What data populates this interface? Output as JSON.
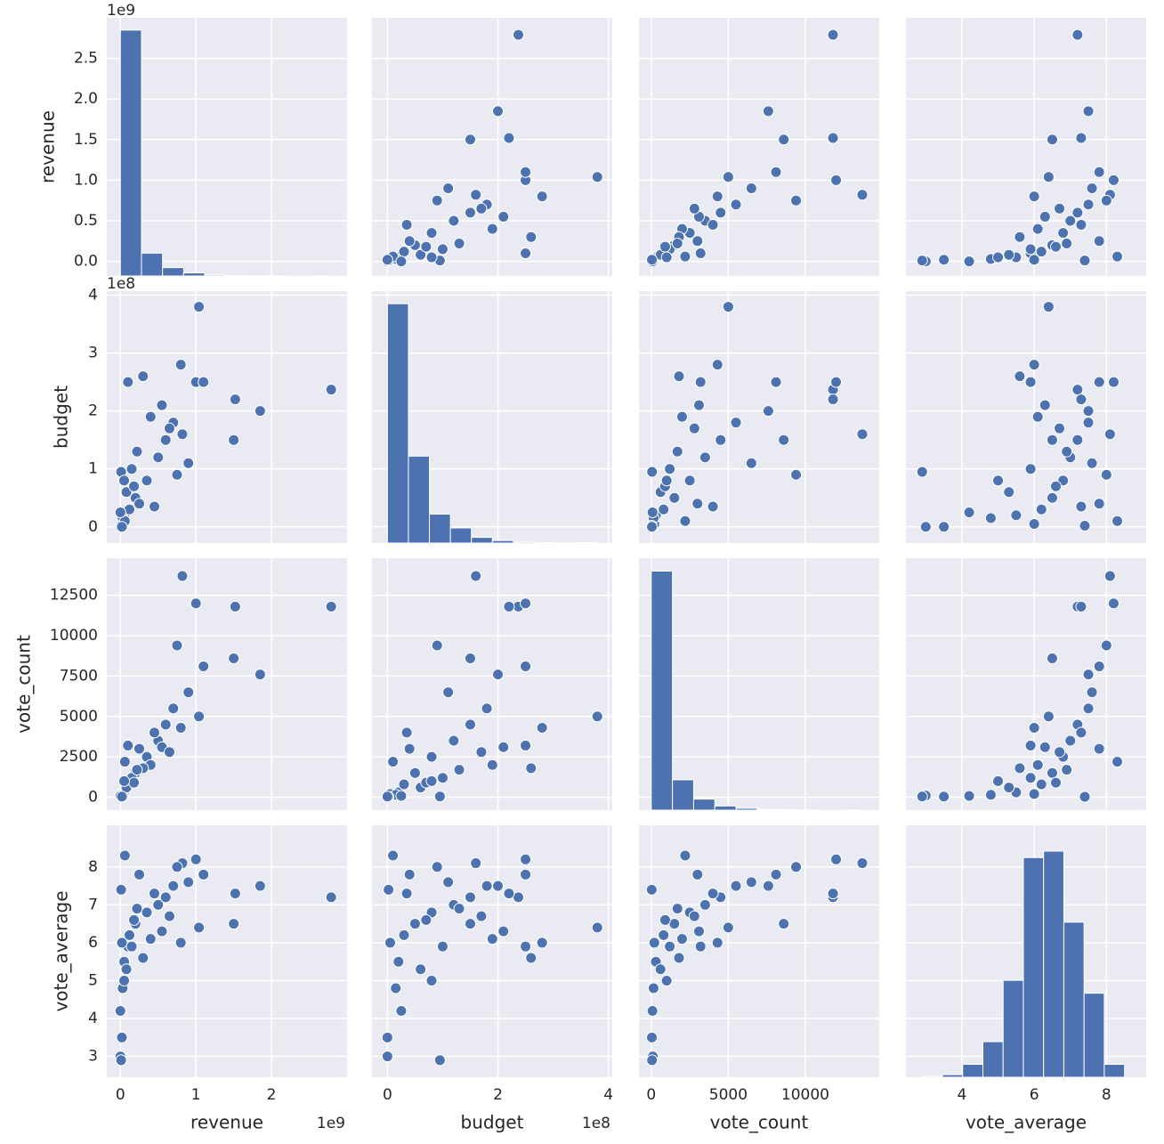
{
  "chart_data": {
    "type": "pairplot",
    "color": "#4c72b0",
    "grid": true,
    "variables": [
      {
        "label": "revenue",
        "offset": "1e9",
        "lim": [
          -0.18,
          3.0
        ],
        "xticks": [
          0,
          1,
          2
        ],
        "yticks": [
          {
            "value": 0,
            "label": "0.0"
          },
          {
            "value": 0.5,
            "label": "0.5"
          },
          {
            "value": 1,
            "label": "1.0"
          },
          {
            "value": 1.5,
            "label": "1.5"
          },
          {
            "value": 2,
            "label": "2.0"
          },
          {
            "value": 2.5,
            "label": "2.5"
          }
        ],
        "values": [
          2.79,
          1.85,
          1.52,
          1.04,
          1.5,
          0.82,
          1.0,
          0.1,
          0.0,
          0.01,
          0.05,
          0.12,
          0.2,
          0.35,
          0.5,
          0.6,
          0.7,
          0.25,
          0.02,
          0.03,
          0.08,
          0.15,
          0.4,
          0.9,
          0.01,
          0.06,
          0.3,
          0.45,
          0.0,
          0.18,
          0.55,
          0.05,
          0.8,
          1.1,
          0.75,
          0.22,
          0.02,
          0.65
        ]
      },
      {
        "label": "budget",
        "offset": "1e8",
        "lim": [
          -0.28,
          4.07
        ],
        "xticks": [
          0,
          2,
          4
        ],
        "yticks": [
          0,
          1,
          2,
          3,
          4
        ],
        "values": [
          2.37,
          2.0,
          2.2,
          3.8,
          1.5,
          1.6,
          2.5,
          2.5,
          0.0,
          0.95,
          0.2,
          0.3,
          0.5,
          0.8,
          1.2,
          1.5,
          1.8,
          0.4,
          0.05,
          0.15,
          0.6,
          1.0,
          1.9,
          1.1,
          0.02,
          0.1,
          2.6,
          0.35,
          0.25,
          0.7,
          2.1,
          0.8,
          2.8,
          2.5,
          0.9,
          1.3,
          0.0,
          1.7
        ]
      },
      {
        "label": "vote_count",
        "lim": [
          -800,
          14800
        ],
        "xticks": [
          0,
          5000,
          10000
        ],
        "yticks": [
          0,
          2500,
          5000,
          7500,
          10000,
          12500
        ],
        "values": [
          11800,
          7600,
          11800,
          5000,
          8600,
          13700,
          12000,
          3200,
          100,
          50,
          300,
          800,
          1500,
          2500,
          3500,
          4500,
          5500,
          3000,
          200,
          150,
          600,
          1200,
          2000,
          6500,
          30,
          2200,
          1800,
          4000,
          80,
          900,
          3100,
          1000,
          4300,
          8100,
          9400,
          1700,
          40,
          2800
        ]
      },
      {
        "label": "vote_average",
        "lim": [
          2.45,
          9.1
        ],
        "xticks": [
          4,
          6,
          8
        ],
        "yticks": [
          3,
          4,
          5,
          6,
          7,
          8
        ],
        "values": [
          7.2,
          7.5,
          7.3,
          6.4,
          6.5,
          8.1,
          8.2,
          5.9,
          3.0,
          2.9,
          5.5,
          6.2,
          6.5,
          6.8,
          7.0,
          7.2,
          7.5,
          7.8,
          6.0,
          4.8,
          5.3,
          5.9,
          6.1,
          7.6,
          7.4,
          8.3,
          5.6,
          7.3,
          4.2,
          6.6,
          6.3,
          5.0,
          6.0,
          7.8,
          8.0,
          6.9,
          3.5,
          6.7
        ]
      }
    ],
    "histograms": [
      {
        "bins": [
          0,
          0.279,
          0.558,
          0.837,
          1.116,
          1.395,
          1.674,
          1.953,
          2.232,
          2.511,
          2.79
        ],
        "counts": [
          2800,
          260,
          95,
          35,
          12,
          4,
          1,
          1,
          0,
          1
        ],
        "count_lim": [
          0,
          2940
        ]
      },
      {
        "bins": [
          0,
          0.38,
          0.76,
          1.14,
          1.52,
          1.9,
          2.28,
          2.66,
          3.04,
          3.42,
          3.8
        ],
        "counts": [
          1900,
          690,
          230,
          120,
          45,
          20,
          8,
          3,
          2,
          3
        ],
        "count_lim": [
          0,
          2000
        ]
      },
      {
        "bins": [
          0,
          1375,
          2750,
          4125,
          5500,
          6875,
          8250,
          9625,
          11000,
          12375,
          13750
        ],
        "counts": [
          2600,
          330,
          120,
          45,
          20,
          8,
          4,
          1,
          0,
          1
        ],
        "count_lim": [
          0,
          2740
        ]
      },
      {
        "bins": [
          2.9,
          3.46,
          4.02,
          4.58,
          5.14,
          5.7,
          6.26,
          6.82,
          7.38,
          7.94,
          8.5
        ],
        "counts": [
          3,
          8,
          40,
          110,
          300,
          680,
          700,
          480,
          260,
          40
        ],
        "count_lim": [
          0,
          780
        ]
      }
    ]
  }
}
